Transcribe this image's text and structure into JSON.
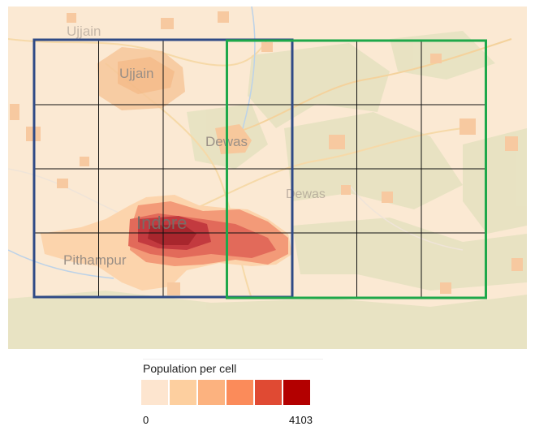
{
  "map": {
    "places": [
      {
        "name": "Ujjain",
        "id": "ujjain-ghost"
      },
      {
        "name": "Ujjain",
        "id": "ujjain"
      },
      {
        "name": "Dewas",
        "id": "dewas"
      },
      {
        "name": "Dewas",
        "id": "dewas-ghost"
      },
      {
        "name": "Indore",
        "id": "indore"
      },
      {
        "name": "Pithampur",
        "id": "pithampur"
      }
    ],
    "grid": {
      "rows": 4,
      "cols": 7
    },
    "boxes": [
      {
        "id": "left-box",
        "color": "#2f4a86",
        "col_start": 0,
        "col_end": 4
      },
      {
        "id": "right-box",
        "color": "#1ea84a",
        "col_start": 3,
        "col_end": 7
      }
    ],
    "colors": {
      "base": "#fbe9d3",
      "green": "#e7e3c3"
    }
  },
  "legend": {
    "title": "Population per cell",
    "min": "0",
    "max": "4103",
    "colors": [
      "#fde5cf",
      "#fdcf9f",
      "#fcb27f",
      "#fb8b5a",
      "#e04a33",
      "#b30000"
    ]
  }
}
